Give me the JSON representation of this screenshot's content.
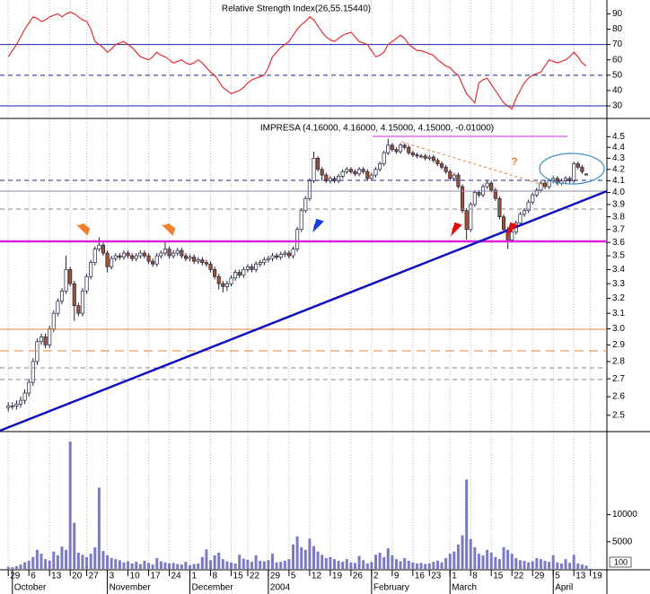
{
  "chart_data": [
    {
      "type": "line",
      "title": "Relative Strength Index(26,55.15440)",
      "color": "#e03030",
      "xlim": [
        -2,
        145
      ],
      "ylim": [
        23,
        99
      ],
      "yticks": [
        30,
        40,
        50,
        60,
        70,
        80,
        90
      ],
      "reference_lines": [
        70,
        50,
        30
      ],
      "values": [
        62,
        66,
        70,
        75,
        80,
        84,
        88,
        87,
        85,
        86,
        88,
        89,
        90,
        88,
        90,
        91,
        90,
        88,
        86,
        85,
        80,
        72,
        70,
        68,
        65,
        67,
        70,
        71,
        72,
        70,
        68,
        65,
        62,
        61,
        60,
        62,
        65,
        63,
        62,
        60,
        58,
        59,
        60,
        58,
        57,
        58,
        60,
        58,
        55,
        52,
        50,
        46,
        42,
        40,
        38,
        39,
        40,
        42,
        45,
        47,
        48,
        49,
        50,
        55,
        62,
        65,
        68,
        70,
        72,
        76,
        80,
        83,
        85,
        88,
        86,
        82,
        78,
        75,
        73,
        72,
        74,
        76,
        77,
        78,
        75,
        72,
        71,
        70,
        66,
        62,
        63,
        65,
        70,
        72,
        74,
        76,
        74,
        70,
        68,
        66,
        66,
        65,
        64,
        63,
        60,
        58,
        56,
        55,
        52,
        50,
        44,
        38,
        35,
        32,
        45,
        47,
        48,
        44,
        40,
        36,
        32,
        30,
        28,
        35,
        40,
        45,
        48,
        50,
        51,
        52,
        56,
        60,
        59,
        58,
        59,
        60,
        62,
        65,
        62,
        58,
        56
      ]
    },
    {
      "type": "candlestick",
      "title": "IMPRESA (4.16000, 4.16000, 4.15000, 4.15000, -0.01000)",
      "annotation": "?",
      "xlim": [
        -2,
        145
      ],
      "ylim": [
        2.42,
        4.65
      ],
      "log_scale": true,
      "up_color": "#ffffff",
      "down_color": "#a0522d",
      "yticks": [
        2.5,
        2.6,
        2.7,
        2.8,
        2.9,
        {
          "value": 3,
          "label": "3.0"
        },
        3.1,
        3.2,
        3.3,
        3.4,
        3.5,
        3.6,
        3.7,
        3.8,
        3.9,
        {
          "value": 4,
          "label": "4.0"
        },
        4.1,
        4.2,
        4.3,
        4.4,
        4.5
      ],
      "open": [
        2.54,
        2.55,
        2.55,
        2.56,
        2.58,
        2.62,
        2.68,
        2.8,
        2.92,
        2.95,
        2.9,
        3.0,
        3.1,
        3.18,
        3.25,
        3.4,
        3.3,
        3.15,
        3.1,
        3.25,
        3.35,
        3.45,
        3.55,
        3.58,
        3.52,
        3.42,
        3.48,
        3.5,
        3.49,
        3.52,
        3.5,
        3.48,
        3.5,
        3.52,
        3.5,
        3.46,
        3.44,
        3.5,
        3.52,
        3.55,
        3.5,
        3.52,
        3.54,
        3.5,
        3.48,
        3.49,
        3.46,
        3.47,
        3.45,
        3.44,
        3.4,
        3.35,
        3.3,
        3.28,
        3.3,
        3.34,
        3.38,
        3.36,
        3.4,
        3.42,
        3.4,
        3.44,
        3.45,
        3.47,
        3.48,
        3.5,
        3.49,
        3.51,
        3.52,
        3.5,
        3.55,
        3.7,
        3.85,
        3.95,
        4.1,
        4.3,
        4.2,
        4.15,
        4.1,
        4.12,
        4.1,
        4.14,
        4.18,
        4.2,
        4.18,
        4.16,
        4.2,
        4.18,
        4.12,
        4.15,
        4.2,
        4.25,
        4.35,
        4.42,
        4.38,
        4.36,
        4.42,
        4.4,
        4.35,
        4.33,
        4.32,
        4.32,
        4.3,
        4.31,
        4.28,
        4.25,
        4.22,
        4.18,
        4.12,
        4.15,
        4.05,
        3.85,
        3.7,
        3.9,
        4.0,
        3.98,
        4.05,
        4.08,
        4.02,
        3.95,
        3.8,
        3.7,
        3.62,
        3.68,
        3.75,
        3.82,
        3.85,
        3.92,
        3.98,
        4.02,
        4.08,
        4.05,
        4.1,
        4.12,
        4.08,
        4.1,
        4.12,
        4.1,
        4.25,
        4.22,
        4.16
      ],
      "high": [
        2.57,
        2.57,
        2.58,
        2.6,
        2.64,
        2.7,
        2.82,
        2.94,
        2.97,
        2.97,
        3.02,
        3.12,
        3.2,
        3.27,
        3.5,
        3.42,
        3.32,
        3.17,
        3.27,
        3.37,
        3.47,
        3.57,
        3.64,
        3.6,
        3.54,
        3.5,
        3.52,
        3.52,
        3.54,
        3.54,
        3.52,
        3.52,
        3.54,
        3.54,
        3.52,
        3.48,
        3.52,
        3.54,
        3.6,
        3.57,
        3.54,
        3.56,
        3.56,
        3.52,
        3.51,
        3.51,
        3.49,
        3.49,
        3.47,
        3.46,
        3.42,
        3.37,
        3.32,
        3.32,
        3.36,
        3.4,
        3.4,
        3.42,
        3.44,
        3.44,
        3.46,
        3.47,
        3.49,
        3.5,
        3.52,
        3.52,
        3.53,
        3.54,
        3.54,
        3.57,
        3.72,
        3.87,
        3.97,
        4.12,
        4.36,
        4.32,
        4.22,
        4.17,
        4.14,
        4.14,
        4.16,
        4.2,
        4.22,
        4.22,
        4.2,
        4.22,
        4.22,
        4.2,
        4.17,
        4.22,
        4.27,
        4.37,
        4.48,
        4.44,
        4.4,
        4.44,
        4.44,
        4.42,
        4.37,
        4.35,
        4.34,
        4.34,
        4.33,
        4.33,
        4.3,
        4.27,
        4.24,
        4.2,
        4.17,
        4.17,
        4.07,
        3.87,
        3.92,
        4.02,
        4.02,
        4.07,
        4.1,
        4.1,
        4.04,
        3.97,
        3.82,
        3.72,
        3.7,
        3.77,
        3.84,
        3.87,
        3.94,
        4.0,
        4.04,
        4.1,
        4.1,
        4.12,
        4.14,
        4.14,
        4.12,
        4.14,
        4.14,
        4.27,
        4.27,
        4.24,
        4.16
      ],
      "low": [
        2.52,
        2.53,
        2.53,
        2.54,
        2.56,
        2.6,
        2.66,
        2.78,
        2.9,
        2.88,
        2.88,
        2.98,
        3.08,
        3.16,
        3.23,
        3.28,
        3.05,
        3.08,
        3.08,
        3.23,
        3.33,
        3.43,
        3.53,
        3.5,
        3.38,
        3.4,
        3.46,
        3.47,
        3.47,
        3.48,
        3.46,
        3.46,
        3.48,
        3.48,
        3.44,
        3.42,
        3.42,
        3.48,
        3.5,
        3.48,
        3.48,
        3.5,
        3.48,
        3.46,
        3.46,
        3.44,
        3.44,
        3.43,
        3.42,
        3.38,
        3.33,
        3.26,
        3.24,
        3.25,
        3.28,
        3.32,
        3.34,
        3.34,
        3.38,
        3.38,
        3.38,
        3.42,
        3.43,
        3.45,
        3.46,
        3.47,
        3.47,
        3.49,
        3.48,
        3.48,
        3.53,
        3.68,
        3.83,
        3.93,
        4.08,
        4.18,
        4.1,
        4.08,
        4.08,
        4.08,
        4.08,
        4.12,
        4.16,
        4.16,
        4.14,
        4.14,
        4.16,
        4.1,
        4.1,
        4.13,
        4.18,
        4.23,
        4.33,
        4.36,
        4.34,
        4.34,
        4.38,
        4.33,
        4.31,
        4.3,
        4.3,
        4.28,
        4.28,
        4.26,
        4.23,
        4.2,
        4.16,
        4.1,
        4.1,
        4.03,
        3.83,
        3.62,
        3.68,
        3.88,
        3.96,
        3.96,
        4.03,
        4.0,
        3.93,
        3.78,
        3.68,
        3.55,
        3.6,
        3.66,
        3.73,
        3.8,
        3.83,
        3.9,
        3.96,
        4.0,
        4.03,
        4.03,
        4.08,
        4.06,
        4.06,
        4.08,
        4.08,
        4.08,
        4.2,
        4.16,
        4.15
      ],
      "close": [
        2.55,
        2.55,
        2.56,
        2.58,
        2.62,
        2.68,
        2.8,
        2.92,
        2.95,
        2.9,
        3.0,
        3.1,
        3.18,
        3.25,
        3.4,
        3.3,
        3.15,
        3.1,
        3.25,
        3.35,
        3.45,
        3.55,
        3.58,
        3.52,
        3.42,
        3.48,
        3.5,
        3.49,
        3.52,
        3.5,
        3.48,
        3.5,
        3.52,
        3.5,
        3.46,
        3.44,
        3.5,
        3.52,
        3.55,
        3.5,
        3.52,
        3.54,
        3.5,
        3.48,
        3.49,
        3.46,
        3.47,
        3.45,
        3.44,
        3.4,
        3.35,
        3.3,
        3.28,
        3.3,
        3.34,
        3.38,
        3.36,
        3.4,
        3.42,
        3.4,
        3.44,
        3.45,
        3.47,
        3.48,
        3.5,
        3.49,
        3.51,
        3.52,
        3.5,
        3.55,
        3.7,
        3.85,
        3.95,
        4.1,
        4.3,
        4.2,
        4.15,
        4.1,
        4.12,
        4.1,
        4.14,
        4.18,
        4.2,
        4.18,
        4.16,
        4.2,
        4.18,
        4.12,
        4.15,
        4.2,
        4.25,
        4.35,
        4.42,
        4.38,
        4.36,
        4.42,
        4.4,
        4.35,
        4.33,
        4.32,
        4.32,
        4.3,
        4.31,
        4.28,
        4.25,
        4.22,
        4.18,
        4.12,
        4.15,
        4.05,
        3.85,
        3.7,
        3.9,
        4.0,
        3.98,
        4.05,
        4.08,
        4.02,
        3.95,
        3.8,
        3.7,
        3.62,
        3.68,
        3.75,
        3.82,
        3.85,
        3.92,
        3.98,
        4.02,
        4.08,
        4.05,
        4.1,
        4.12,
        4.08,
        4.1,
        4.12,
        4.1,
        4.25,
        4.22,
        4.18,
        4.15
      ]
    },
    {
      "type": "bar",
      "color": "#7b7bc4",
      "unit_label": "100",
      "xlim": [
        -2,
        145
      ],
      "ylim": [
        0,
        25000
      ],
      "yticks": [
        5000,
        10000
      ],
      "values": [
        400,
        300,
        500,
        800,
        1200,
        1500,
        2200,
        3500,
        2800,
        1800,
        1500,
        3200,
        2500,
        4100,
        3500,
        23500,
        8500,
        3000,
        2600,
        2200,
        2800,
        4000,
        15000,
        3300,
        2500,
        2000,
        1800,
        1600,
        1200,
        1400,
        1000,
        1300,
        900,
        1500,
        1100,
        800,
        2000,
        1400,
        1200,
        1000,
        1100,
        900,
        800,
        1300,
        700,
        900,
        1000,
        2200,
        3600,
        1600,
        2500,
        3000,
        1800,
        1400,
        1200,
        1000,
        2600,
        1900,
        1700,
        1300,
        2500,
        1500,
        1400,
        1600,
        2800,
        1200,
        1300,
        1500,
        1800,
        4500,
        6000,
        4000,
        3500,
        5600,
        4200,
        3200,
        2600,
        2000,
        2200,
        1800,
        1500,
        1300,
        1800,
        1200,
        1100,
        2400,
        1600,
        1000,
        1300,
        2600,
        3000,
        2200,
        3800,
        2500,
        1800,
        1400,
        2000,
        1500,
        1200,
        1000,
        1100,
        900,
        1000,
        1300,
        1500,
        1200,
        2000,
        2800,
        3200,
        4500,
        6200,
        16500,
        5500,
        4000,
        2800,
        2500,
        3500,
        3000,
        2200,
        1800,
        4000,
        3500,
        2800,
        2000,
        1600,
        1500,
        1200,
        1400,
        2000,
        1800,
        1500,
        1300,
        2500,
        1200,
        1000,
        1800,
        1100,
        2600,
        1000,
        800,
        600
      ],
      "xticks": [
        {
          "value": 0,
          "label": "29"
        },
        {
          "value": 5,
          "label": "6"
        },
        {
          "value": 10,
          "label": "13"
        },
        {
          "value": 15,
          "label": "20"
        },
        {
          "value": 19,
          "label": "27"
        },
        {
          "value": 24,
          "label": "3"
        },
        {
          "value": 29,
          "label": "10"
        },
        {
          "value": 34,
          "label": "17"
        },
        {
          "value": 39,
          "label": "24"
        },
        {
          "value": 44,
          "label": "1"
        },
        {
          "value": 49,
          "label": "8"
        },
        {
          "value": 54,
          "label": "15"
        },
        {
          "value": 58,
          "label": "22"
        },
        {
          "value": 63,
          "label": "29"
        },
        {
          "value": 68,
          "label": "5"
        },
        {
          "value": 73,
          "label": "12"
        },
        {
          "value": 78,
          "label": "19"
        },
        {
          "value": 83,
          "label": "26"
        },
        {
          "value": 88,
          "label": "2"
        },
        {
          "value": 93,
          "label": "9"
        },
        {
          "value": 98,
          "label": "16"
        },
        {
          "value": 102,
          "label": "23"
        },
        {
          "value": 107,
          "label": "1"
        },
        {
          "value": 112,
          "label": "8"
        },
        {
          "value": 117,
          "label": "15"
        },
        {
          "value": 122,
          "label": "22"
        },
        {
          "value": 127,
          "label": "29"
        },
        {
          "value": 132,
          "label": "5"
        },
        {
          "value": 137,
          "label": "13"
        },
        {
          "value": 141,
          "label": "19"
        }
      ],
      "month_ticks": [
        {
          "value": 1,
          "label": "October"
        },
        {
          "value": 24,
          "label": "November"
        },
        {
          "value": 44,
          "label": "December"
        },
        {
          "value": 63,
          "label": "2004"
        },
        {
          "value": 88,
          "label": "February"
        },
        {
          "value": 107,
          "label": "March"
        },
        {
          "value": 132,
          "label": "April"
        }
      ]
    }
  ]
}
